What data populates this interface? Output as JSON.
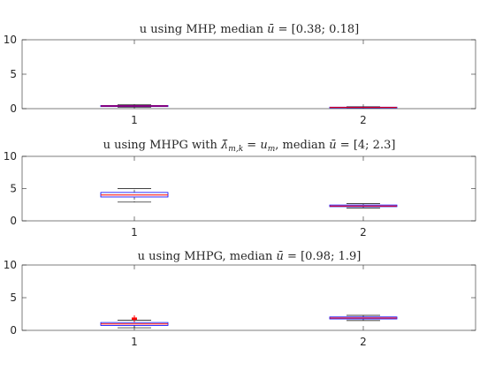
{
  "chart_data": [
    {
      "type": "box",
      "title_parts": [
        "u using MHP, median ",
        "ū",
        " = [0.38; 0.18]"
      ],
      "categories": [
        "1",
        "2"
      ],
      "ylim": [
        0,
        10
      ],
      "yticks": [
        0,
        5,
        10
      ],
      "ytick_labels": [
        "0",
        "5",
        "10"
      ],
      "boxes": [
        {
          "category": "1",
          "min": 0.22,
          "q1": 0.3,
          "median": 0.38,
          "q3": 0.46,
          "max": 0.55,
          "outliers": []
        },
        {
          "category": "2",
          "min": 0.1,
          "q1": 0.14,
          "median": 0.18,
          "q3": 0.22,
          "max": 0.27,
          "outliers": []
        }
      ]
    },
    {
      "type": "box",
      "title_parts": [
        "u using MHPG with ",
        "λ̄",
        "m,k",
        " = ",
        "u",
        "m",
        ", median ",
        "ū",
        " = [4; 2.3]"
      ],
      "categories": [
        "1",
        "2"
      ],
      "ylim": [
        0,
        10
      ],
      "yticks": [
        0,
        5,
        10
      ],
      "ytick_labels": [
        "0",
        "5",
        "10"
      ],
      "boxes": [
        {
          "category": "1",
          "min": 2.9,
          "q1": 3.7,
          "median": 4.0,
          "q3": 4.4,
          "max": 5.0,
          "outliers": []
        },
        {
          "category": "2",
          "min": 2.0,
          "q1": 2.2,
          "median": 2.3,
          "q3": 2.45,
          "max": 2.65,
          "outliers": []
        }
      ]
    },
    {
      "type": "box",
      "title_parts": [
        "u using MHPG, median ",
        "ū",
        " = [0.98; 1.9]"
      ],
      "categories": [
        "1",
        "2"
      ],
      "ylim": [
        0,
        10
      ],
      "yticks": [
        0,
        5,
        10
      ],
      "ytick_labels": [
        "0",
        "5",
        "10"
      ],
      "boxes": [
        {
          "category": "1",
          "min": 0.4,
          "q1": 0.75,
          "median": 0.98,
          "q3": 1.2,
          "max": 1.55,
          "outliers": [
            1.7,
            1.8,
            1.9
          ]
        },
        {
          "category": "2",
          "min": 1.5,
          "q1": 1.75,
          "median": 1.9,
          "q3": 2.05,
          "max": 2.3,
          "outliers": []
        }
      ]
    }
  ],
  "colors": {
    "axis": "#262626",
    "box": "#0000ff",
    "median": "#ff0000",
    "outlier": "#ff0000",
    "whisker": "#000000"
  }
}
